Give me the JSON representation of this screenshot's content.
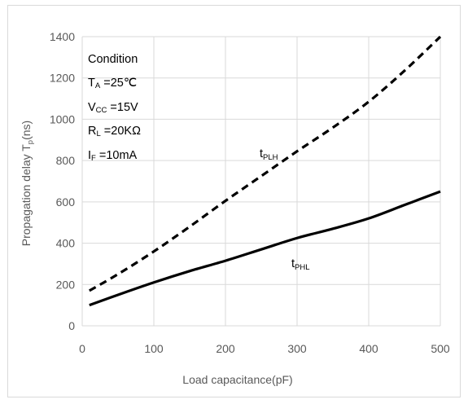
{
  "chart_data": {
    "type": "line",
    "xlabel": "Load capacitance(pF)",
    "ylabel": "Propagation delay T",
    "ylabel_sub": "p",
    "ylabel_unit": "(ns)",
    "xlim": [
      0,
      500
    ],
    "ylim": [
      0,
      1400
    ],
    "xticks": [
      0,
      100,
      200,
      300,
      400,
      500
    ],
    "yticks": [
      0,
      200,
      400,
      600,
      800,
      1000,
      1200,
      1400
    ],
    "grid": true,
    "series": [
      {
        "name": "t",
        "name_sub": "PLH",
        "style": "dashed",
        "color": "#000000",
        "x": [
          10,
          50,
          100,
          150,
          200,
          250,
          300,
          350,
          400,
          450,
          500
        ],
        "y": [
          170,
          250,
          360,
          480,
          605,
          725,
          845,
          960,
          1085,
          1235,
          1400
        ]
      },
      {
        "name": "t",
        "name_sub": "PHL",
        "style": "solid",
        "color": "#000000",
        "x": [
          10,
          50,
          100,
          150,
          200,
          250,
          300,
          350,
          400,
          450,
          500
        ],
        "y": [
          100,
          150,
          210,
          265,
          315,
          370,
          425,
          470,
          520,
          585,
          650
        ]
      }
    ],
    "annotations": {
      "condition_title": "Condition",
      "conditions": [
        {
          "main": "T",
          "sub": "A",
          "rest": " =25℃"
        },
        {
          "main": "V",
          "sub": "CC",
          "rest": " =15V"
        },
        {
          "main": "R",
          "sub": "L",
          "rest": " =20KΩ"
        },
        {
          "main": "I",
          "sub": "F",
          "rest": " =10mA"
        }
      ]
    }
  }
}
